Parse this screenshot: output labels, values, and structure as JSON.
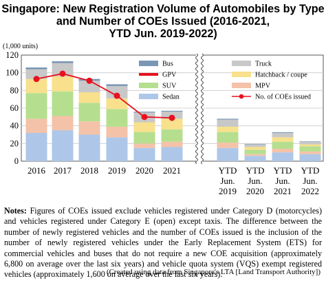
{
  "title_line1": "Singapore: New Registration Volume of Automobiles by Type",
  "title_line2": "and Number of COEs Issued (2016-2021,",
  "title_line3": "YTD Jun. 2019-2022)",
  "notes_label": "Notes:",
  "notes_text": "Figures of COEs issued exclude vehicles registered under Category D (motorcycles) and vehicles registered under Category E (open) except taxis. The difference between the number of newly registered vehicles and the number of COEs issued is the inclusion of the number of newly registered vehicles under the Early Replacement System (ETS) for commercial vehicles and buses that do not require a new COE acquisition (approximately 6,800 on average over the last six years) and vehicle quota system (VQS) exempt registered vehicles (approximately 1,600 on average over the last six years).",
  "source": "(Created using data from Singapore's LTA [Land Transport Authority])",
  "chart_data": {
    "type": "bar",
    "stacked": true,
    "unit_label": "(1,000 units)",
    "ylim": [
      0,
      120
    ],
    "yticks": [
      0,
      20,
      40,
      60,
      80,
      100,
      120
    ],
    "grid": "horizontal",
    "categories": [
      "2016",
      "2017",
      "2018",
      "2019",
      "2020",
      "2021",
      "YTD Jun. 2019",
      "YTD Jun. 2020",
      "YTD Jun. 2021",
      "YTD Jun. 2022"
    ],
    "category_labels": [
      [
        "2016"
      ],
      [
        "2017"
      ],
      [
        "2018"
      ],
      [
        "2019"
      ],
      [
        "2020"
      ],
      [
        "2021"
      ],
      [
        "YTD",
        "Jun.",
        "2019"
      ],
      [
        "YTD",
        "Jun.",
        "2020"
      ],
      [
        "YTD",
        "Jun.",
        "2021"
      ],
      [
        "YTD",
        "Jun.",
        "2022"
      ]
    ],
    "axis_break_after": "2021",
    "series": [
      {
        "name": "Sedan",
        "color": "#aec7e8",
        "values": [
          32,
          35,
          30,
          27,
          15,
          16,
          15,
          6,
          10,
          8
        ]
      },
      {
        "name": "MPV",
        "color": "#f4c2a8",
        "values": [
          16,
          16,
          15,
          12,
          5,
          6,
          6,
          2,
          4,
          3
        ]
      },
      {
        "name": "SUV",
        "color": "#b5df8f",
        "values": [
          29,
          28,
          21,
          20,
          13,
          14,
          12,
          5,
          8,
          6
        ]
      },
      {
        "name": "Hatchback / coupe",
        "color": "#f8e08c",
        "values": [
          16,
          17,
          12,
          12,
          11,
          12,
          6,
          3,
          5,
          2
        ]
      },
      {
        "name": "Truck",
        "color": "#c8c8c8",
        "values": [
          11,
          15,
          13,
          14,
          11,
          8,
          8,
          3,
          5,
          3
        ]
      },
      {
        "name": "Bus",
        "color": "#7a96b5",
        "values": [
          2,
          2,
          2,
          2,
          1,
          1,
          1,
          0.5,
          0.8,
          0.5
        ]
      }
    ],
    "coe_line": {
      "name": "No. of COEs issued",
      "color": "#e8111f",
      "values": [
        93,
        99,
        91,
        74,
        50,
        49,
        null,
        null,
        null,
        null
      ]
    },
    "legend_col1": [
      "Bus",
      "GPV",
      "SUV",
      "Sedan"
    ],
    "legend_col2": [
      "Truck",
      "Hatchback / coupe",
      "MPV",
      "No. of COEs issued"
    ],
    "legend_colors": {
      "Bus": "#7a96b5",
      "GPV": "#e8111f",
      "SUV": "#b5df8f",
      "Sedan": "#aec7e8",
      "Truck": "#c8c8c8",
      "Hatchback / coupe": "#f8e08c",
      "MPV": "#f4c2a8"
    }
  }
}
